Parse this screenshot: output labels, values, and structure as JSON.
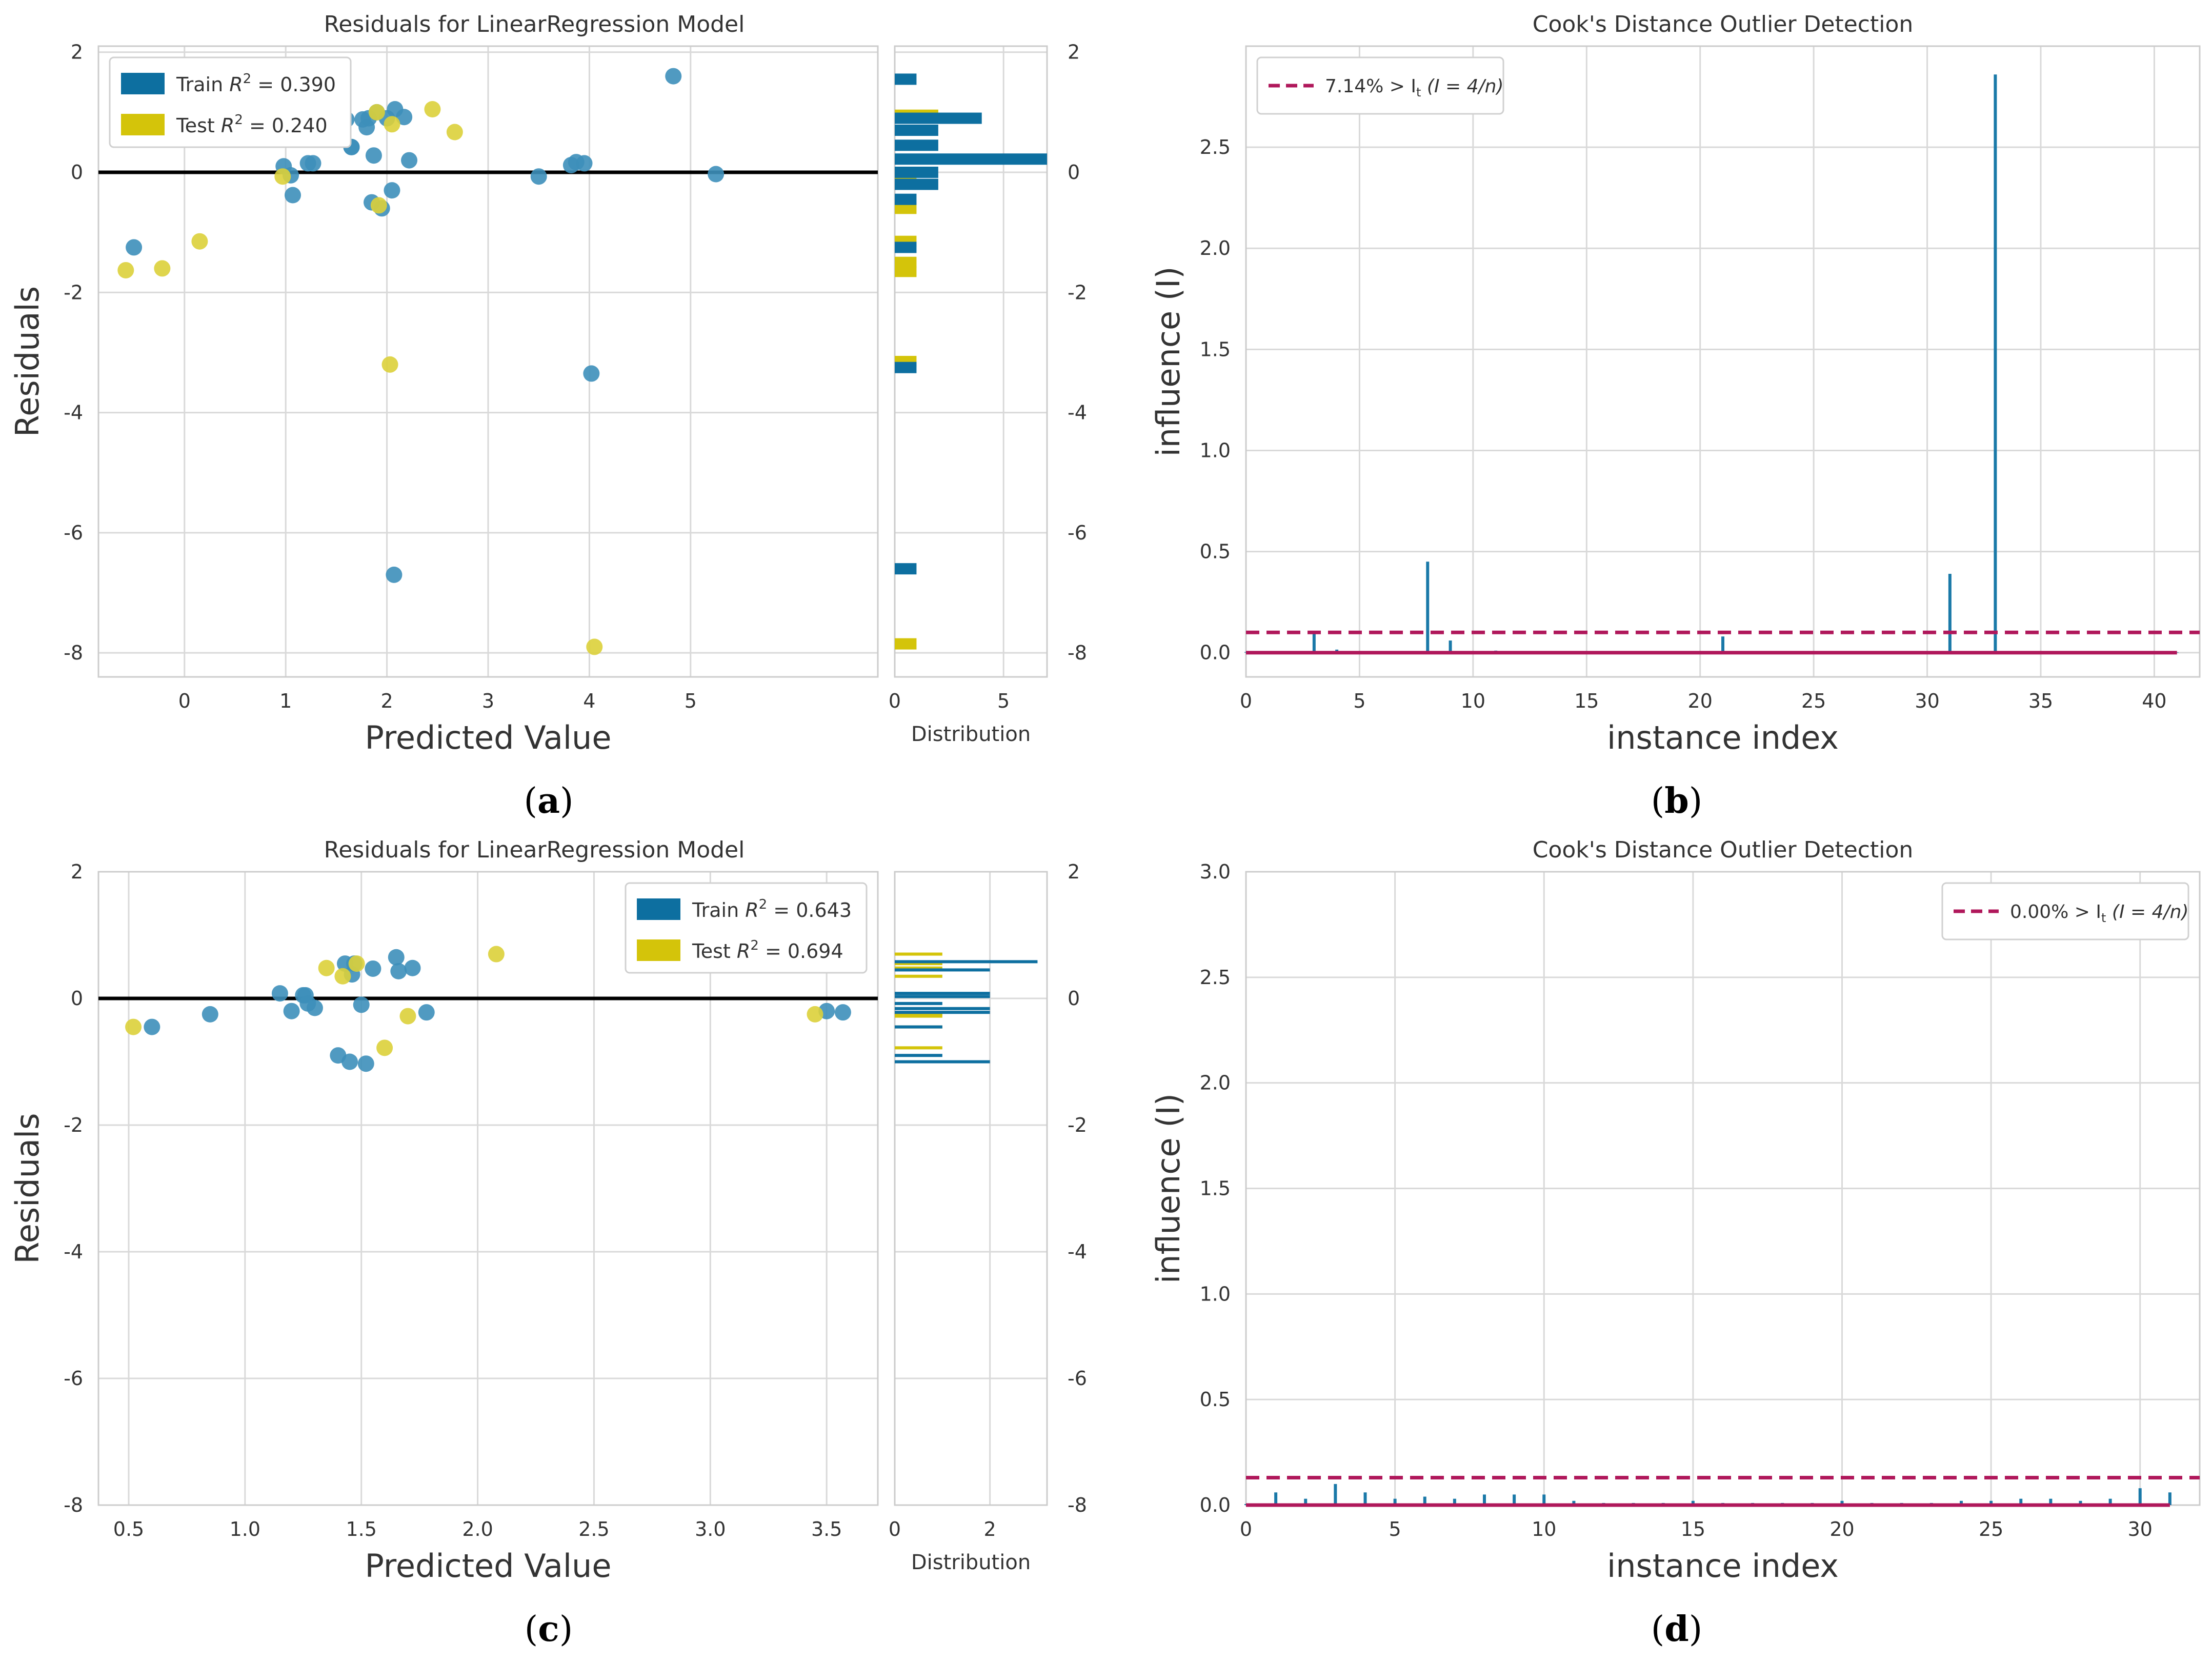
{
  "colors": {
    "train": "#0d6fa0",
    "test": "#d4c40a",
    "trainPoint": "#3d8fba",
    "testPoint": "#dcd03a",
    "threshold": "#b0185b",
    "grid": "#d9d9d9",
    "zero": "#000000",
    "stem": "#1a79a8"
  },
  "panels": {
    "a": {
      "caption_letter": "a"
    },
    "b": {
      "caption_letter": "b"
    },
    "c": {
      "caption_letter": "c"
    },
    "d": {
      "caption_letter": "d"
    }
  },
  "chart_data": [
    {
      "id": "a",
      "type": "scatter",
      "title": "Residuals for LinearRegression Model",
      "xlabel": "Predicted Value",
      "ylabel": "Residuals",
      "xlim": [
        -0.85,
        6.85
      ],
      "ylim": [
        -8.4,
        2.1
      ],
      "xticks": [
        0,
        1,
        2,
        3,
        4,
        5
      ],
      "yticks": [
        2,
        0,
        -2,
        -4,
        -6,
        -8
      ],
      "legend": {
        "position": "top-left",
        "entries": [
          {
            "series": "train",
            "prefix": "Train ",
            "suffix": " = 0.390"
          },
          {
            "series": "test",
            "prefix": "Test ",
            "suffix": " = 0.240"
          }
        ]
      },
      "train": [
        [
          -0.5,
          -1.25
        ],
        [
          0.98,
          0.1
        ],
        [
          1.05,
          -0.05
        ],
        [
          1.07,
          -0.38
        ],
        [
          1.22,
          0.15
        ],
        [
          1.27,
          0.15
        ],
        [
          1.6,
          0.88
        ],
        [
          1.65,
          0.42
        ],
        [
          1.65,
          0.42
        ],
        [
          1.76,
          0.88
        ],
        [
          1.8,
          0.75
        ],
        [
          1.82,
          0.9
        ],
        [
          1.85,
          -0.5
        ],
        [
          1.87,
          0.28
        ],
        [
          1.9,
          1.0
        ],
        [
          1.95,
          -0.6
        ],
        [
          2.0,
          0.9
        ],
        [
          2.05,
          -0.3
        ],
        [
          2.07,
          -6.7
        ],
        [
          2.08,
          1.05
        ],
        [
          2.17,
          0.92
        ],
        [
          2.22,
          0.2
        ],
        [
          3.5,
          -0.07
        ],
        [
          3.82,
          0.12
        ],
        [
          3.87,
          0.17
        ],
        [
          3.95,
          0.15
        ],
        [
          4.02,
          -3.35
        ],
        [
          4.83,
          1.6
        ],
        [
          5.25,
          -0.03
        ]
      ],
      "test": [
        [
          -0.58,
          -1.63
        ],
        [
          -0.22,
          -1.6
        ],
        [
          0.15,
          -1.15
        ],
        [
          0.97,
          -0.07
        ],
        [
          1.9,
          1.0
        ],
        [
          1.92,
          -0.55
        ],
        [
          2.03,
          -3.2
        ],
        [
          2.05,
          0.8
        ],
        [
          2.45,
          1.05
        ],
        [
          2.67,
          0.67
        ],
        [
          4.05,
          -7.9
        ]
      ],
      "distribution": {
        "label": "Distribution",
        "xlim": [
          0,
          7
        ],
        "xticks": [
          0,
          5
        ],
        "train_bins": [
          {
            "y": 1.55,
            "count": 1
          },
          {
            "y": 0.9,
            "count": 4
          },
          {
            "y": 0.7,
            "count": 2
          },
          {
            "y": 0.45,
            "count": 2
          },
          {
            "y": 0.22,
            "count": 7
          },
          {
            "y": 0.0,
            "count": 2
          },
          {
            "y": -0.2,
            "count": 2
          },
          {
            "y": -0.45,
            "count": 1
          },
          {
            "y": -1.25,
            "count": 1
          },
          {
            "y": -3.25,
            "count": 1
          },
          {
            "y": -6.6,
            "count": 1
          }
        ],
        "test_bins": [
          {
            "y": 0.95,
            "count": 2
          },
          {
            "y": 0.7,
            "count": 1
          },
          {
            "y": -0.05,
            "count": 1
          },
          {
            "y": -0.6,
            "count": 1
          },
          {
            "y": -1.15,
            "count": 1
          },
          {
            "y": -1.5,
            "count": 1
          },
          {
            "y": -1.65,
            "count": 1
          },
          {
            "y": -3.15,
            "count": 1
          },
          {
            "y": -7.85,
            "count": 1
          }
        ]
      }
    },
    {
      "id": "b",
      "type": "bar",
      "title": "Cook's Distance Outlier Detection",
      "xlabel": "instance index",
      "ylabel": "influence (I)",
      "xlim": [
        0,
        42
      ],
      "ylim": [
        -0.12,
        3.0
      ],
      "xticks": [
        0,
        5,
        10,
        15,
        20,
        25,
        30,
        35,
        40
      ],
      "yticks": [
        0.0,
        0.5,
        1.0,
        1.5,
        2.0,
        2.5
      ],
      "threshold": 0.1,
      "legend": {
        "position": "top-left",
        "text": "7.14% > I",
        "formula": "(I = 4/n)"
      },
      "index": [
        0,
        1,
        2,
        3,
        4,
        5,
        6,
        7,
        8,
        9,
        10,
        11,
        12,
        13,
        14,
        15,
        16,
        17,
        18,
        19,
        20,
        21,
        22,
        23,
        24,
        25,
        26,
        27,
        28,
        29,
        30,
        31,
        32,
        33,
        34,
        35,
        36,
        37,
        38,
        39,
        40,
        41
      ],
      "values": [
        0.003,
        0.002,
        0.002,
        0.1,
        0.015,
        0.003,
        0.002,
        0.002,
        0.45,
        0.06,
        0.004,
        0.01,
        0.008,
        0.002,
        0.002,
        0.002,
        0.002,
        0.002,
        0.002,
        0.002,
        0.002,
        0.08,
        0.002,
        0.002,
        0.002,
        0.002,
        0.002,
        0.002,
        0.002,
        0.002,
        0.002,
        0.39,
        0.002,
        2.86,
        0.002,
        0.002,
        0.002,
        0.002,
        0.002,
        0.002,
        0.002,
        0.002
      ]
    },
    {
      "id": "c",
      "type": "scatter",
      "title": "Residuals for LinearRegression Model",
      "xlabel": "Predicted Value",
      "ylabel": "Residuals",
      "xlim": [
        0.37,
        3.72
      ],
      "ylim": [
        -8.0,
        2.0
      ],
      "xticks": [
        0.5,
        1.0,
        1.5,
        2.0,
        2.5,
        3.0,
        3.5
      ],
      "yticks": [
        2,
        0,
        -2,
        -4,
        -6,
        -8
      ],
      "legend": {
        "position": "top-right",
        "entries": [
          {
            "series": "train",
            "prefix": "Train ",
            "suffix": " = 0.643"
          },
          {
            "series": "test",
            "prefix": "Test ",
            "suffix": " = 0.694"
          }
        ]
      },
      "train": [
        [
          0.6,
          -0.45
        ],
        [
          0.85,
          -0.25
        ],
        [
          1.15,
          0.08
        ],
        [
          1.2,
          -0.2
        ],
        [
          1.25,
          0.05
        ],
        [
          1.26,
          0.05
        ],
        [
          1.27,
          -0.08
        ],
        [
          1.3,
          -0.15
        ],
        [
          1.4,
          -0.9
        ],
        [
          1.43,
          0.55
        ],
        [
          1.45,
          -1.0
        ],
        [
          1.46,
          0.38
        ],
        [
          1.47,
          0.55
        ],
        [
          1.5,
          -0.1
        ],
        [
          1.52,
          -1.03
        ],
        [
          1.55,
          0.47
        ],
        [
          1.65,
          0.65
        ],
        [
          1.66,
          0.43
        ],
        [
          1.72,
          0.48
        ],
        [
          1.78,
          -0.22
        ],
        [
          3.5,
          -0.2
        ],
        [
          3.57,
          -0.22
        ]
      ],
      "test": [
        [
          0.52,
          -0.45
        ],
        [
          1.35,
          0.48
        ],
        [
          1.42,
          0.35
        ],
        [
          1.48,
          0.55
        ],
        [
          1.6,
          -0.78
        ],
        [
          1.7,
          -0.28
        ],
        [
          2.08,
          0.7
        ],
        [
          3.45,
          -0.25
        ]
      ],
      "distribution": {
        "label": "Distribution",
        "xlim": [
          0,
          3.2
        ],
        "xticks": [
          0,
          2
        ],
        "train_bins": [
          {
            "y": 0.58,
            "count": 3
          },
          {
            "y": 0.45,
            "count": 2
          },
          {
            "y": 0.08,
            "count": 2
          },
          {
            "y": 0.03,
            "count": 2
          },
          {
            "y": -0.08,
            "count": 1
          },
          {
            "y": -0.16,
            "count": 2
          },
          {
            "y": -0.22,
            "count": 2
          },
          {
            "y": -0.45,
            "count": 1
          },
          {
            "y": -0.9,
            "count": 1
          },
          {
            "y": -1.0,
            "count": 2
          }
        ],
        "test_bins": [
          {
            "y": 0.7,
            "count": 1
          },
          {
            "y": 0.55,
            "count": 1
          },
          {
            "y": 0.48,
            "count": 1
          },
          {
            "y": 0.35,
            "count": 1
          },
          {
            "y": -0.25,
            "count": 1
          },
          {
            "y": -0.28,
            "count": 1
          },
          {
            "y": -0.45,
            "count": 1
          },
          {
            "y": -0.78,
            "count": 1
          }
        ]
      }
    },
    {
      "id": "d",
      "type": "bar",
      "title": "Cook's Distance Outlier Detection",
      "xlabel": "instance index",
      "ylabel": "influence (I)",
      "xlim": [
        0,
        32
      ],
      "ylim": [
        0.0,
        3.0
      ],
      "xticks": [
        0,
        5,
        10,
        15,
        20,
        25,
        30
      ],
      "yticks": [
        0.0,
        0.5,
        1.0,
        1.5,
        2.0,
        2.5,
        3.0
      ],
      "threshold": 0.13,
      "legend": {
        "position": "top-right",
        "text": "0.00% > I",
        "formula": "(I = 4/n)"
      },
      "index": [
        0,
        1,
        2,
        3,
        4,
        5,
        6,
        7,
        8,
        9,
        10,
        11,
        12,
        13,
        14,
        15,
        16,
        17,
        18,
        19,
        20,
        21,
        22,
        23,
        24,
        25,
        26,
        27,
        28,
        29,
        30,
        31
      ],
      "values": [
        0.005,
        0.06,
        0.03,
        0.1,
        0.06,
        0.03,
        0.04,
        0.03,
        0.05,
        0.05,
        0.05,
        0.02,
        0.01,
        0.01,
        0.01,
        0.02,
        0.01,
        0.01,
        0.01,
        0.01,
        0.02,
        0.01,
        0.01,
        0.01,
        0.02,
        0.02,
        0.03,
        0.03,
        0.02,
        0.03,
        0.08,
        0.06
      ]
    }
  ]
}
